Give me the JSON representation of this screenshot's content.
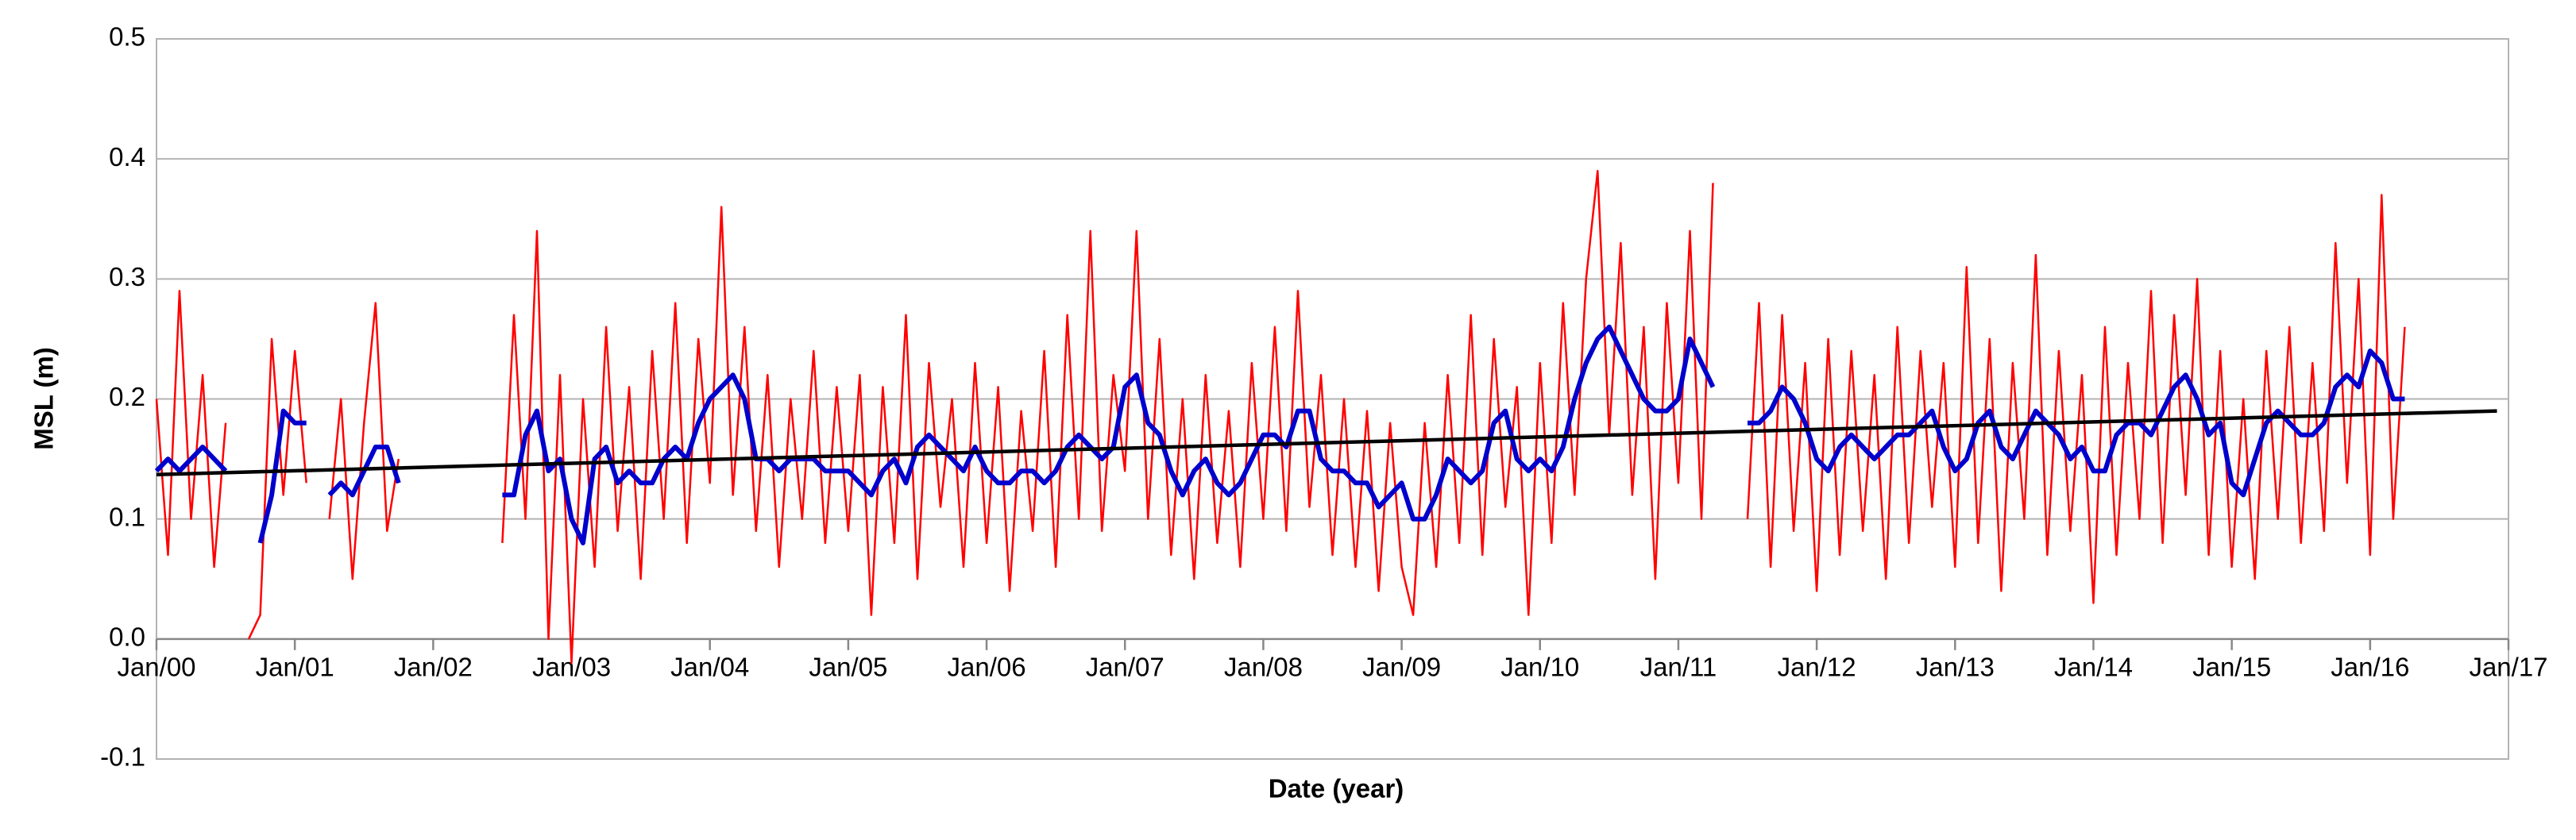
{
  "chart_data": {
    "type": "line",
    "x_label": "Date (year)",
    "y_label": "MSL (m)",
    "xlim": [
      "2000-01",
      "2017-01"
    ],
    "xticks": [
      {
        "value": "2000-01",
        "label": "Jan/00"
      },
      {
        "value": "2001-01",
        "label": "Jan/01"
      },
      {
        "value": "2002-01",
        "label": "Jan/02"
      },
      {
        "value": "2003-01",
        "label": "Jan/03"
      },
      {
        "value": "2004-01",
        "label": "Jan/04"
      },
      {
        "value": "2005-01",
        "label": "Jan/05"
      },
      {
        "value": "2006-01",
        "label": "Jan/06"
      },
      {
        "value": "2007-01",
        "label": "Jan/07"
      },
      {
        "value": "2008-01",
        "label": "Jan/08"
      },
      {
        "value": "2009-01",
        "label": "Jan/09"
      },
      {
        "value": "2010-01",
        "label": "Jan/10"
      },
      {
        "value": "2011-01",
        "label": "Jan/11"
      },
      {
        "value": "2012-01",
        "label": "Jan/12"
      },
      {
        "value": "2013-01",
        "label": "Jan/13"
      },
      {
        "value": "2014-01",
        "label": "Jan/14"
      },
      {
        "value": "2015-01",
        "label": "Jan/15"
      },
      {
        "value": "2016-01",
        "label": "Jan/16"
      },
      {
        "value": "2017-01",
        "label": "Jan/17"
      }
    ],
    "ylim": [
      -0.1,
      0.5
    ],
    "yticks": [
      -0.1,
      {
        "value": 0,
        "label": "0.0"
      },
      0.1,
      0.2,
      0.3,
      0.4,
      0.5
    ],
    "grid": true,
    "x": [
      "2000-01",
      "2000-02",
      "2000-03",
      "2000-04",
      "2000-05",
      "2000-06",
      "2000-07",
      "2000-08",
      "2000-09",
      "2000-10",
      "2000-11",
      "2000-12",
      "2001-01",
      "2001-02",
      "2001-03",
      "2001-04",
      "2001-05",
      "2001-06",
      "2001-07",
      "2001-08",
      "2001-09",
      "2001-10",
      "2001-11",
      "2001-12",
      "2002-01",
      "2002-02",
      "2002-03",
      "2002-04",
      "2002-05",
      "2002-06",
      "2002-07",
      "2002-08",
      "2002-09",
      "2002-10",
      "2002-11",
      "2002-12",
      "2003-01",
      "2003-02",
      "2003-03",
      "2003-04",
      "2003-05",
      "2003-06",
      "2003-07",
      "2003-08",
      "2003-09",
      "2003-10",
      "2003-11",
      "2003-12",
      "2004-01",
      "2004-02",
      "2004-03",
      "2004-04",
      "2004-05",
      "2004-06",
      "2004-07",
      "2004-08",
      "2004-09",
      "2004-10",
      "2004-11",
      "2004-12",
      "2005-01",
      "2005-02",
      "2005-03",
      "2005-04",
      "2005-05",
      "2005-06",
      "2005-07",
      "2005-08",
      "2005-09",
      "2005-10",
      "2005-11",
      "2005-12",
      "2006-01",
      "2006-02",
      "2006-03",
      "2006-04",
      "2006-05",
      "2006-06",
      "2006-07",
      "2006-08",
      "2006-09",
      "2006-10",
      "2006-11",
      "2006-12",
      "2007-01",
      "2007-02",
      "2007-03",
      "2007-04",
      "2007-05",
      "2007-06",
      "2007-07",
      "2007-08",
      "2007-09",
      "2007-10",
      "2007-11",
      "2007-12",
      "2008-01",
      "2008-02",
      "2008-03",
      "2008-04",
      "2008-05",
      "2008-06",
      "2008-07",
      "2008-08",
      "2008-09",
      "2008-10",
      "2008-11",
      "2008-12",
      "2009-01",
      "2009-02",
      "2009-03",
      "2009-04",
      "2009-05",
      "2009-06",
      "2009-07",
      "2009-08",
      "2009-09",
      "2009-10",
      "2009-11",
      "2009-12",
      "2010-01",
      "2010-02",
      "2010-03",
      "2010-04",
      "2010-05",
      "2010-06",
      "2010-07",
      "2010-08",
      "2010-09",
      "2010-10",
      "2010-11",
      "2010-12",
      "2011-01",
      "2011-02",
      "2011-03",
      "2011-04",
      "2011-05",
      "2011-06",
      "2011-07",
      "2011-08",
      "2011-09",
      "2011-10",
      "2011-11",
      "2011-12",
      "2012-01",
      "2012-02",
      "2012-03",
      "2012-04",
      "2012-05",
      "2012-06",
      "2012-07",
      "2012-08",
      "2012-09",
      "2012-10",
      "2012-11",
      "2012-12",
      "2013-01",
      "2013-02",
      "2013-03",
      "2013-04",
      "2013-05",
      "2013-06",
      "2013-07",
      "2013-08",
      "2013-09",
      "2013-10",
      "2013-11",
      "2013-12",
      "2014-01",
      "2014-02",
      "2014-03",
      "2014-04",
      "2014-05",
      "2014-06",
      "2014-07",
      "2014-08",
      "2014-09",
      "2014-10",
      "2014-11",
      "2014-12",
      "2015-01",
      "2015-02",
      "2015-03",
      "2015-04",
      "2015-05",
      "2015-06",
      "2015-07",
      "2015-08",
      "2015-09",
      "2015-10",
      "2015-11",
      "2015-12",
      "2016-01",
      "2016-02",
      "2016-03",
      "2016-04"
    ],
    "series": [
      {
        "color": "#ff0000",
        "width": 2.5,
        "values": [
          0.2,
          0.07,
          0.29,
          0.1,
          0.22,
          0.06,
          0.18,
          null,
          0.0,
          0.02,
          0.25,
          0.12,
          0.24,
          0.13,
          null,
          0.1,
          0.2,
          0.05,
          0.18,
          0.28,
          0.09,
          0.15,
          null,
          null,
          null,
          null,
          null,
          null,
          null,
          null,
          0.08,
          0.27,
          0.1,
          0.34,
          0.0,
          0.22,
          -0.02,
          0.2,
          0.06,
          0.26,
          0.09,
          0.21,
          0.05,
          0.24,
          0.1,
          0.28,
          0.08,
          0.25,
          0.13,
          0.36,
          0.12,
          0.26,
          0.09,
          0.22,
          0.06,
          0.2,
          0.1,
          0.24,
          0.08,
          0.21,
          0.09,
          0.22,
          0.02,
          0.21,
          0.08,
          0.27,
          0.05,
          0.23,
          0.11,
          0.2,
          0.06,
          0.23,
          0.08,
          0.21,
          0.04,
          0.19,
          0.09,
          0.24,
          0.06,
          0.27,
          0.1,
          0.34,
          0.09,
          0.22,
          0.14,
          0.34,
          0.1,
          0.25,
          0.07,
          0.2,
          0.05,
          0.22,
          0.08,
          0.19,
          0.06,
          0.23,
          0.1,
          0.26,
          0.09,
          0.29,
          0.11,
          0.22,
          0.07,
          0.2,
          0.06,
          0.19,
          0.04,
          0.18,
          0.06,
          0.02,
          0.18,
          0.06,
          0.22,
          0.08,
          0.27,
          0.07,
          0.25,
          0.11,
          0.21,
          0.02,
          0.23,
          0.08,
          0.28,
          0.12,
          0.3,
          0.39,
          0.17,
          0.33,
          0.12,
          0.26,
          0.05,
          0.28,
          0.13,
          0.34,
          0.1,
          0.38,
          null,
          null,
          0.1,
          0.28,
          0.06,
          0.27,
          0.09,
          0.23,
          0.04,
          0.25,
          0.07,
          0.24,
          0.09,
          0.22,
          0.05,
          0.26,
          0.08,
          0.24,
          0.11,
          0.23,
          0.06,
          0.31,
          0.08,
          0.25,
          0.04,
          0.23,
          0.1,
          0.32,
          0.07,
          0.24,
          0.09,
          0.22,
          0.03,
          0.26,
          0.07,
          0.23,
          0.1,
          0.29,
          0.08,
          0.27,
          0.12,
          0.3,
          0.07,
          0.24,
          0.06,
          0.2,
          0.05,
          0.24,
          0.1,
          0.26,
          0.08,
          0.23,
          0.09,
          0.33,
          0.13,
          0.3,
          0.07,
          0.37,
          0.1,
          0.26
        ]
      },
      {
        "color": "#0000cc",
        "width": 6,
        "values": [
          0.14,
          0.15,
          0.14,
          0.15,
          0.16,
          0.15,
          0.14,
          null,
          null,
          0.08,
          0.12,
          0.19,
          0.18,
          0.18,
          null,
          0.12,
          0.13,
          0.12,
          0.14,
          0.16,
          0.16,
          0.13,
          null,
          null,
          null,
          null,
          null,
          null,
          null,
          null,
          0.12,
          0.12,
          0.17,
          0.19,
          0.14,
          0.15,
          0.1,
          0.08,
          0.15,
          0.16,
          0.13,
          0.14,
          0.13,
          0.13,
          0.15,
          0.16,
          0.15,
          0.18,
          0.2,
          0.21,
          0.22,
          0.2,
          0.15,
          0.15,
          0.14,
          0.15,
          0.15,
          0.15,
          0.14,
          0.14,
          0.14,
          0.13,
          0.12,
          0.14,
          0.15,
          0.13,
          0.16,
          0.17,
          0.16,
          0.15,
          0.14,
          0.16,
          0.14,
          0.13,
          0.13,
          0.14,
          0.14,
          0.13,
          0.14,
          0.16,
          0.17,
          0.16,
          0.15,
          0.16,
          0.21,
          0.22,
          0.18,
          0.17,
          0.14,
          0.12,
          0.14,
          0.15,
          0.13,
          0.12,
          0.13,
          0.15,
          0.17,
          0.17,
          0.16,
          0.19,
          0.19,
          0.15,
          0.14,
          0.14,
          0.13,
          0.13,
          0.11,
          0.12,
          0.13,
          0.1,
          0.1,
          0.12,
          0.15,
          0.14,
          0.13,
          0.14,
          0.18,
          0.19,
          0.15,
          0.14,
          0.15,
          0.14,
          0.16,
          0.2,
          0.23,
          0.25,
          0.26,
          0.24,
          0.22,
          0.2,
          0.19,
          0.19,
          0.2,
          0.25,
          0.23,
          0.21,
          null,
          null,
          0.18,
          0.18,
          0.19,
          0.21,
          0.2,
          0.18,
          0.15,
          0.14,
          0.16,
          0.17,
          0.16,
          0.15,
          0.16,
          0.17,
          0.17,
          0.18,
          0.19,
          0.16,
          0.14,
          0.15,
          0.18,
          0.19,
          0.16,
          0.15,
          0.17,
          0.19,
          0.18,
          0.17,
          0.15,
          0.16,
          0.14,
          0.14,
          0.17,
          0.18,
          0.18,
          0.17,
          0.19,
          0.21,
          0.22,
          0.2,
          0.17,
          0.18,
          0.13,
          0.12,
          0.15,
          0.18,
          0.19,
          0.18,
          0.17,
          0.17,
          0.18,
          0.21,
          0.22,
          0.21,
          0.24,
          0.23,
          0.2,
          0.2
        ]
      }
    ],
    "trend": {
      "color": "#000000",
      "width": 4.5,
      "x": [
        "2000-01",
        "2016-12"
      ],
      "values": [
        0.137,
        0.19
      ]
    }
  }
}
